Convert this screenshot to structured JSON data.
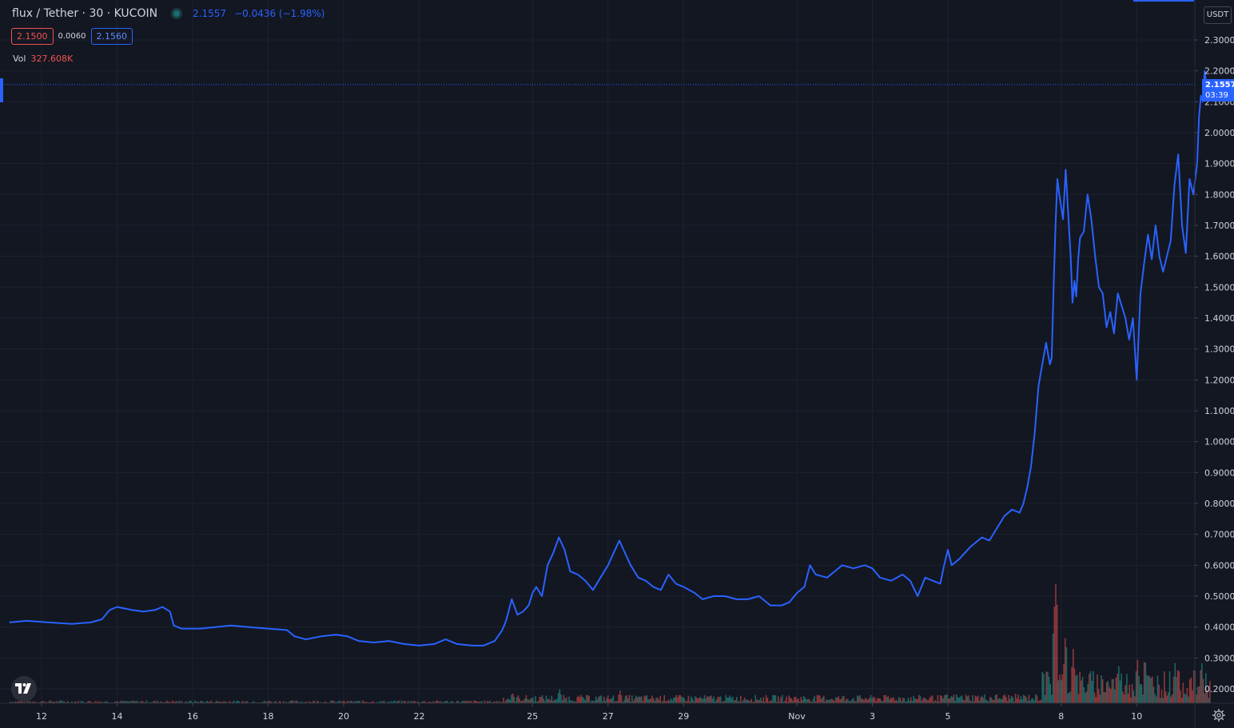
{
  "header": {
    "symbol": "flux / Tether · 30 · KUCOIN",
    "last_price": "2.1557",
    "change": "−0.0436 (−1.98%)"
  },
  "quote": {
    "bid": "2.1500",
    "spread": "0.0060",
    "ask": "2.1560"
  },
  "volume": {
    "label": "Vol",
    "value": "327.608K"
  },
  "axis": {
    "currency": "USDT",
    "last_price_label": "2.1557",
    "countdown": "03:39"
  },
  "colors": {
    "line": "#2962ff",
    "background": "#131722",
    "grid": "#1f2330",
    "up": "#26a69a",
    "down": "#ef5350"
  },
  "icons": {
    "logo": "tradingview-logo-icon",
    "settings": "gear-icon"
  },
  "chart_data": {
    "type": "line",
    "ylim": [
      0.17,
      2.33
    ],
    "y_ticks": [
      "0.2000",
      "0.3000",
      "0.4000",
      "0.5000",
      "0.6000",
      "0.7000",
      "0.8000",
      "0.9000",
      "1.0000",
      "1.1000",
      "1.2000",
      "1.3000",
      "1.4000",
      "1.5000",
      "1.6000",
      "1.7000",
      "1.8000",
      "1.9000",
      "2.0000",
      "2.1000",
      "2.2000",
      "2.3000"
    ],
    "x_ticks": [
      {
        "label": "12",
        "day": 12
      },
      {
        "label": "14",
        "day": 14
      },
      {
        "label": "16",
        "day": 16
      },
      {
        "label": "18",
        "day": 18
      },
      {
        "label": "20",
        "day": 20
      },
      {
        "label": "22",
        "day": 22
      },
      {
        "label": "25",
        "day": 25
      },
      {
        "label": "27",
        "day": 27
      },
      {
        "label": "29",
        "day": 29
      },
      {
        "label": "Nov",
        "day": 32
      },
      {
        "label": "3",
        "day": 34
      },
      {
        "label": "5",
        "day": 36
      },
      {
        "label": "8",
        "day": 39
      },
      {
        "label": "10",
        "day": 41
      }
    ],
    "series": [
      {
        "points": [
          [
            11.15,
            0.415
          ],
          [
            11.6,
            0.42
          ],
          [
            12.2,
            0.415
          ],
          [
            12.8,
            0.41
          ],
          [
            13.3,
            0.415
          ],
          [
            13.6,
            0.425
          ],
          [
            13.8,
            0.455
          ],
          [
            14.0,
            0.465
          ],
          [
            14.4,
            0.455
          ],
          [
            14.7,
            0.45
          ],
          [
            15.0,
            0.455
          ],
          [
            15.2,
            0.465
          ],
          [
            15.4,
            0.45
          ],
          [
            15.5,
            0.405
          ],
          [
            15.7,
            0.395
          ],
          [
            16.2,
            0.395
          ],
          [
            16.6,
            0.4
          ],
          [
            17.0,
            0.405
          ],
          [
            17.5,
            0.4
          ],
          [
            18.0,
            0.395
          ],
          [
            18.5,
            0.39
          ],
          [
            18.7,
            0.37
          ],
          [
            19.0,
            0.36
          ],
          [
            19.4,
            0.37
          ],
          [
            19.8,
            0.375
          ],
          [
            20.1,
            0.37
          ],
          [
            20.4,
            0.355
          ],
          [
            20.8,
            0.35
          ],
          [
            21.2,
            0.355
          ],
          [
            21.6,
            0.345
          ],
          [
            22.0,
            0.34
          ],
          [
            22.4,
            0.345
          ],
          [
            22.7,
            0.36
          ],
          [
            23.0,
            0.345
          ],
          [
            23.4,
            0.34
          ],
          [
            23.7,
            0.34
          ],
          [
            24.0,
            0.355
          ],
          [
            24.2,
            0.39
          ],
          [
            24.3,
            0.42
          ],
          [
            24.45,
            0.49
          ],
          [
            24.6,
            0.44
          ],
          [
            24.75,
            0.45
          ],
          [
            24.9,
            0.47
          ],
          [
            25.0,
            0.51
          ],
          [
            25.1,
            0.53
          ],
          [
            25.25,
            0.5
          ],
          [
            25.4,
            0.6
          ],
          [
            25.55,
            0.64
          ],
          [
            25.7,
            0.69
          ],
          [
            25.85,
            0.65
          ],
          [
            26.0,
            0.58
          ],
          [
            26.2,
            0.57
          ],
          [
            26.4,
            0.55
          ],
          [
            26.6,
            0.52
          ],
          [
            26.8,
            0.56
          ],
          [
            27.0,
            0.6
          ],
          [
            27.15,
            0.64
          ],
          [
            27.3,
            0.68
          ],
          [
            27.45,
            0.64
          ],
          [
            27.6,
            0.6
          ],
          [
            27.8,
            0.56
          ],
          [
            28.0,
            0.55
          ],
          [
            28.2,
            0.53
          ],
          [
            28.4,
            0.52
          ],
          [
            28.6,
            0.57
          ],
          [
            28.8,
            0.54
          ],
          [
            29.0,
            0.53
          ],
          [
            29.3,
            0.51
          ],
          [
            29.5,
            0.49
          ],
          [
            29.8,
            0.5
          ],
          [
            30.1,
            0.5
          ],
          [
            30.4,
            0.49
          ],
          [
            30.7,
            0.49
          ],
          [
            31.0,
            0.5
          ],
          [
            31.3,
            0.47
          ],
          [
            31.6,
            0.47
          ],
          [
            31.8,
            0.48
          ],
          [
            32.0,
            0.51
          ],
          [
            32.2,
            0.53
          ],
          [
            32.35,
            0.6
          ],
          [
            32.5,
            0.57
          ],
          [
            32.8,
            0.56
          ],
          [
            33.0,
            0.58
          ],
          [
            33.2,
            0.6
          ],
          [
            33.5,
            0.59
          ],
          [
            33.8,
            0.6
          ],
          [
            34.0,
            0.59
          ],
          [
            34.2,
            0.56
          ],
          [
            34.5,
            0.55
          ],
          [
            34.8,
            0.57
          ],
          [
            35.0,
            0.55
          ],
          [
            35.2,
            0.5
          ],
          [
            35.4,
            0.56
          ],
          [
            35.6,
            0.55
          ],
          [
            35.8,
            0.54
          ],
          [
            35.9,
            0.6
          ],
          [
            36.0,
            0.65
          ],
          [
            36.1,
            0.6
          ],
          [
            36.3,
            0.62
          ],
          [
            36.6,
            0.66
          ],
          [
            36.9,
            0.69
          ],
          [
            37.1,
            0.68
          ],
          [
            37.3,
            0.72
          ],
          [
            37.5,
            0.76
          ],
          [
            37.7,
            0.78
          ],
          [
            37.9,
            0.77
          ],
          [
            38.0,
            0.8
          ],
          [
            38.1,
            0.85
          ],
          [
            38.2,
            0.92
          ],
          [
            38.3,
            1.03
          ],
          [
            38.4,
            1.18
          ],
          [
            38.5,
            1.25
          ],
          [
            38.6,
            1.32
          ],
          [
            38.7,
            1.25
          ],
          [
            38.75,
            1.27
          ],
          [
            38.8,
            1.5
          ],
          [
            38.85,
            1.7
          ],
          [
            38.9,
            1.85
          ],
          [
            38.95,
            1.8
          ],
          [
            39.05,
            1.72
          ],
          [
            39.12,
            1.88
          ],
          [
            39.18,
            1.75
          ],
          [
            39.25,
            1.6
          ],
          [
            39.3,
            1.45
          ],
          [
            39.35,
            1.52
          ],
          [
            39.4,
            1.47
          ],
          [
            39.45,
            1.59
          ],
          [
            39.5,
            1.66
          ],
          [
            39.6,
            1.68
          ],
          [
            39.7,
            1.8
          ],
          [
            39.8,
            1.72
          ],
          [
            39.9,
            1.6
          ],
          [
            40.0,
            1.5
          ],
          [
            40.1,
            1.48
          ],
          [
            40.2,
            1.37
          ],
          [
            40.3,
            1.42
          ],
          [
            40.4,
            1.35
          ],
          [
            40.5,
            1.48
          ],
          [
            40.6,
            1.44
          ],
          [
            40.7,
            1.4
          ],
          [
            40.8,
            1.33
          ],
          [
            40.9,
            1.4
          ],
          [
            41.0,
            1.2
          ],
          [
            41.1,
            1.48
          ],
          [
            41.2,
            1.58
          ],
          [
            41.3,
            1.67
          ],
          [
            41.4,
            1.59
          ],
          [
            41.5,
            1.7
          ],
          [
            41.6,
            1.6
          ],
          [
            41.7,
            1.55
          ],
          [
            41.8,
            1.6
          ],
          [
            41.9,
            1.65
          ],
          [
            42.0,
            1.83
          ],
          [
            42.1,
            1.93
          ],
          [
            42.2,
            1.7
          ],
          [
            42.3,
            1.61
          ],
          [
            42.4,
            1.85
          ],
          [
            42.5,
            1.8
          ],
          [
            42.6,
            1.9
          ],
          [
            42.65,
            2.05
          ],
          [
            42.7,
            2.12
          ],
          [
            42.75,
            2.1
          ],
          [
            42.8,
            2.2
          ],
          [
            42.85,
            2.15
          ]
        ]
      }
    ],
    "volume": {
      "label": "Vol",
      "segments": [
        {
          "from": 11.15,
          "to": 24.2,
          "level": 0.012
        },
        {
          "from": 24.2,
          "to": 35.9,
          "level": 0.035
        },
        {
          "from": 35.9,
          "to": 38.5,
          "level": 0.04
        },
        {
          "from": 38.5,
          "to": 43.0,
          "level": 0.14
        }
      ],
      "spikes": [
        [
          24.45,
          0.06
        ],
        [
          25.7,
          0.08
        ],
        [
          27.3,
          0.07
        ],
        [
          38.5,
          0.2
        ],
        [
          38.8,
          0.55
        ],
        [
          38.85,
          0.72
        ],
        [
          39.1,
          0.4
        ],
        [
          39.3,
          0.3
        ],
        [
          40.5,
          0.22
        ],
        [
          41.0,
          0.25
        ],
        [
          41.2,
          0.27
        ],
        [
          42.0,
          0.22
        ],
        [
          42.7,
          0.24
        ]
      ]
    }
  }
}
